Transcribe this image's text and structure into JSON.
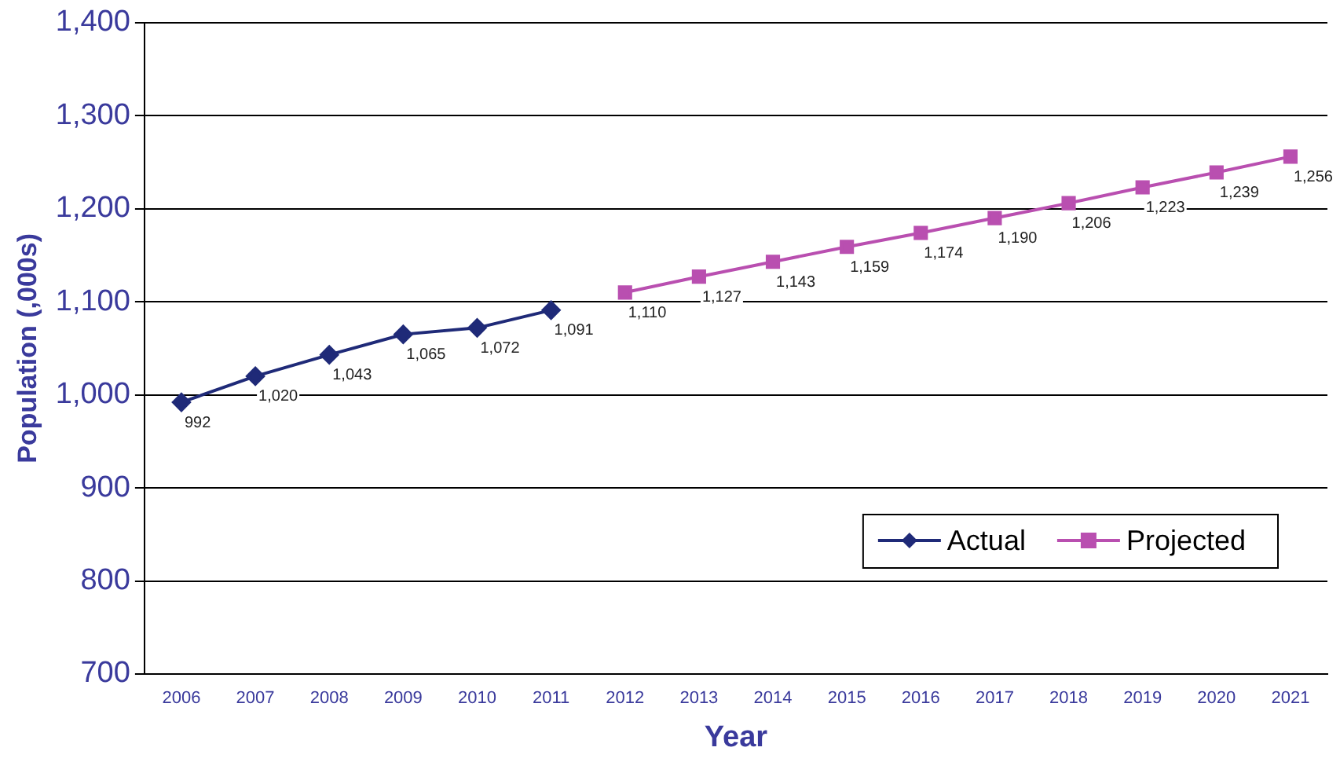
{
  "chart_data": {
    "type": "line",
    "xlabel": "Year",
    "ylabel": "Population (,000s)",
    "categories": [
      "2006",
      "2007",
      "2008",
      "2009",
      "2010",
      "2011",
      "2012",
      "2013",
      "2014",
      "2015",
      "2016",
      "2017",
      "2018",
      "2019",
      "2020",
      "2021"
    ],
    "series": [
      {
        "name": "Actual",
        "color": "#1f2a78",
        "marker": "diamond",
        "values": [
          992,
          1020,
          1043,
          1065,
          1072,
          1091,
          null,
          null,
          null,
          null,
          null,
          null,
          null,
          null,
          null,
          null
        ],
        "value_labels": [
          "992",
          "1,020",
          "1,043",
          "1,065",
          "1,072",
          "1,091",
          null,
          null,
          null,
          null,
          null,
          null,
          null,
          null,
          null,
          null
        ]
      },
      {
        "name": "Projected",
        "color": "#b94fb0",
        "marker": "square",
        "values": [
          null,
          null,
          null,
          null,
          null,
          null,
          1110,
          1127,
          1143,
          1159,
          1174,
          1190,
          1206,
          1223,
          1239,
          1256
        ],
        "value_labels": [
          null,
          null,
          null,
          null,
          null,
          null,
          "1,110",
          "1,127",
          "1,143",
          "1,159",
          "1,174",
          "1,190",
          "1,206",
          "1,223",
          "1,239",
          "1,256"
        ]
      }
    ],
    "ylim": [
      700,
      1400
    ],
    "yticks": [
      {
        "value": 700,
        "label": "700"
      },
      {
        "value": 800,
        "label": "800"
      },
      {
        "value": 900,
        "label": "900"
      },
      {
        "value": 1000,
        "label": "1,000"
      },
      {
        "value": 1100,
        "label": "1,100"
      },
      {
        "value": 1200,
        "label": "1,200"
      },
      {
        "value": 1300,
        "label": "1,300"
      },
      {
        "value": 1400,
        "label": "1,400"
      }
    ],
    "grid": "y",
    "legend": "bottom right",
    "line_style": "solid"
  }
}
